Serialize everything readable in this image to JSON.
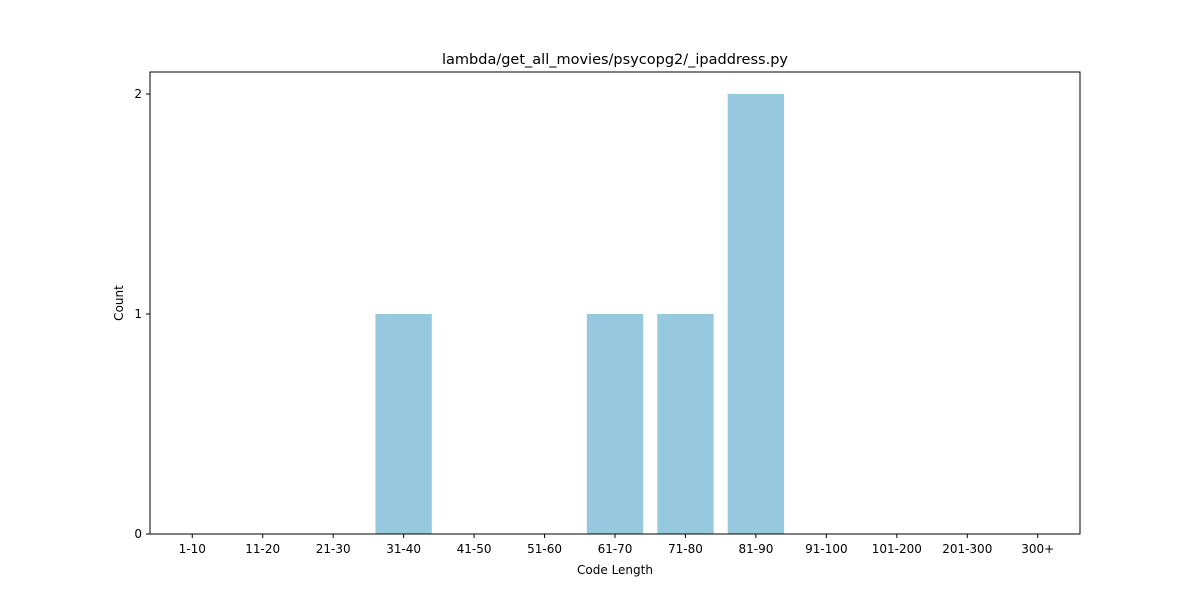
{
  "chart_data": {
    "type": "bar",
    "title": "lambda/get_all_movies/psycopg2/_ipaddress.py",
    "xlabel": "Code Length",
    "ylabel": "Count",
    "categories": [
      "1-10",
      "11-20",
      "21-30",
      "31-40",
      "41-50",
      "51-60",
      "61-70",
      "71-80",
      "81-90",
      "91-100",
      "101-200",
      "201-300",
      "300+"
    ],
    "values": [
      0,
      0,
      0,
      1,
      0,
      0,
      1,
      1,
      2,
      0,
      0,
      0,
      0
    ],
    "ylim": [
      0,
      2.1
    ],
    "yticks": [
      0,
      1,
      2
    ],
    "bar_color": "#96c9dd",
    "grid": false,
    "legend": false
  }
}
